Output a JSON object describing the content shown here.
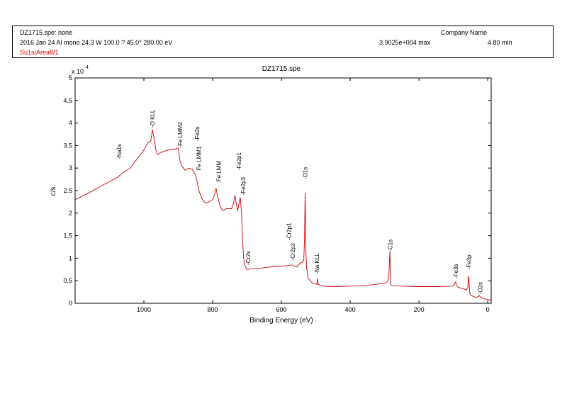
{
  "header": {
    "file_line": "DZ1715.spe: none",
    "company": "Company Name",
    "acquisition": "2016 Jan 24  Al mono  24.3 W  100.0 ?  45.0°  280.00 eV",
    "max_counts": "3.9025e+004 max",
    "duration": "4.80 min",
    "region": "Su1s/Area8/1"
  },
  "chart_data": {
    "type": "line",
    "title": "DZ1715.spe",
    "xlabel": "Binding Energy (eV)",
    "ylabel": "c/s",
    "y_multiplier_label": "x 10",
    "y_multiplier_exp": "4",
    "xlim": [
      1200,
      -10
    ],
    "ylim": [
      0,
      5
    ],
    "x_ticks": [
      1000,
      800,
      600,
      400,
      200,
      0
    ],
    "y_ticks": [
      0,
      0.5,
      1,
      1.5,
      2,
      2.5,
      3,
      3.5,
      4,
      4.5,
      5
    ],
    "y_tick_labels": [
      "0",
      "0.5",
      "1",
      "1.5",
      "2",
      "2.5",
      "3",
      "3.5",
      "4",
      "4.5",
      "5"
    ],
    "series_color": "#cc0000",
    "series": [
      {
        "x": [
          1200,
          1160,
          1120,
          1080,
          1060,
          1040,
          1000,
          990,
          980,
          975,
          970,
          965,
          960,
          950,
          930,
          910,
          900,
          895,
          890,
          885,
          880,
          870,
          860,
          850,
          845,
          840,
          830,
          820,
          810,
          800,
          795,
          790,
          785,
          780,
          775,
          770,
          760,
          745,
          740,
          735,
          730,
          727,
          724,
          720,
          716,
          713,
          710,
          706,
          700,
          690,
          660,
          640,
          600,
          570,
          555,
          545,
          540,
          535,
          533,
          531,
          529,
          527,
          522,
          510,
          497,
          495,
          493,
          480,
          450,
          400,
          350,
          300,
          290,
          287,
          285,
          284.5,
          284,
          283,
          281,
          275,
          250,
          200,
          150,
          100,
          95,
          93,
          91,
          87,
          80,
          70,
          62,
          58,
          56,
          55,
          54,
          52,
          50,
          42,
          32,
          25,
          20,
          15,
          10,
          5,
          0,
          -10
        ],
        "values": [
          2.3,
          2.45,
          2.62,
          2.78,
          2.9,
          3.0,
          3.4,
          3.55,
          3.6,
          3.85,
          3.65,
          3.4,
          3.3,
          3.35,
          3.4,
          3.42,
          3.45,
          3.15,
          3.05,
          3.0,
          2.95,
          3.0,
          2.98,
          2.85,
          2.7,
          2.5,
          2.3,
          2.22,
          2.25,
          2.3,
          2.4,
          2.55,
          2.35,
          2.2,
          2.1,
          2.05,
          2.1,
          2.1,
          2.2,
          2.4,
          2.15,
          2.05,
          2.2,
          2.35,
          2.0,
          1.4,
          1.0,
          0.82,
          0.75,
          0.76,
          0.78,
          0.8,
          0.82,
          0.85,
          0.8,
          0.9,
          0.9,
          0.95,
          1.4,
          2.45,
          1.2,
          0.8,
          0.55,
          0.45,
          0.42,
          0.55,
          0.42,
          0.38,
          0.37,
          0.38,
          0.4,
          0.44,
          0.5,
          0.7,
          1.1,
          1.15,
          0.95,
          0.5,
          0.4,
          0.39,
          0.38,
          0.37,
          0.37,
          0.38,
          0.45,
          0.48,
          0.4,
          0.36,
          0.34,
          0.32,
          0.3,
          0.35,
          0.58,
          0.6,
          0.4,
          0.22,
          0.18,
          0.15,
          0.13,
          0.17,
          0.13,
          0.11,
          0.1,
          0.09,
          0.08,
          0.07
        ]
      }
    ],
    "annotations": [
      {
        "text": "-O KLL",
        "x": 975,
        "y": 3.9
      },
      {
        "text": "-Na1s",
        "x": 1072,
        "y": 3.2
      },
      {
        "text": "-Fe LMM2",
        "x": 895,
        "y": 3.45
      },
      {
        "text": "Fe LMM1",
        "x": 840,
        "y": 2.95
      },
      {
        "text": "-Fe2s",
        "x": 845,
        "y": 3.6
      },
      {
        "text": "Fe LMM",
        "x": 783,
        "y": 2.7
      },
      {
        "text": "-Fe2p1",
        "x": 724,
        "y": 2.95
      },
      {
        "text": "-Fe2p3",
        "x": 711,
        "y": 2.4
      },
      {
        "text": "-Cr2s",
        "x": 697,
        "y": 0.85
      },
      {
        "text": "-Cr2p1",
        "x": 578,
        "y": 1.4
      },
      {
        "text": "-Cr2p3",
        "x": 567,
        "y": 0.95
      },
      {
        "text": "-O1s",
        "x": 531,
        "y": 2.75
      },
      {
        "text": "-Na KLL",
        "x": 497,
        "y": 0.65
      },
      {
        "text": "-C1s",
        "x": 284,
        "y": 1.15
      },
      {
        "text": "-Fe3s",
        "x": 93,
        "y": 0.55
      },
      {
        "text": "-Fe3p",
        "x": 55,
        "y": 0.75
      },
      {
        "text": "-O2s",
        "x": 22,
        "y": 0.2
      }
    ]
  }
}
